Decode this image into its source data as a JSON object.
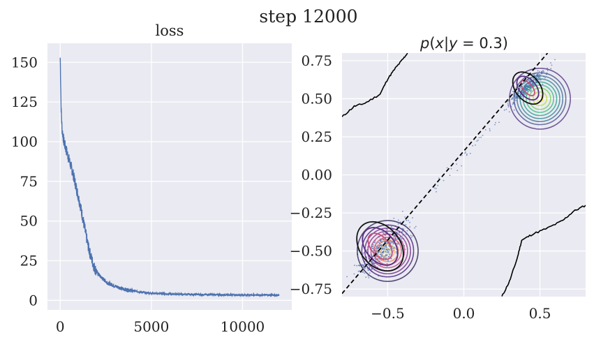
{
  "figure": {
    "suptitle": "step 12000"
  },
  "chart_data": [
    {
      "type": "line",
      "title": "loss",
      "xlabel": "",
      "ylabel": "",
      "xlim": [
        -700,
        12700
      ],
      "ylim": [
        -6,
        162
      ],
      "xticks": [
        0,
        5000,
        10000
      ],
      "xtick_labels": [
        "0",
        "5000",
        "10000"
      ],
      "yticks": [
        0,
        25,
        50,
        75,
        100,
        125,
        150
      ],
      "ytick_labels": [
        "0",
        "25",
        "50",
        "75",
        "100",
        "125",
        "150"
      ],
      "grid": true,
      "series": [
        {
          "color": "#4c72b0",
          "x": [
            0,
            50,
            100,
            200,
            300,
            400,
            500,
            600,
            700,
            800,
            900,
            1000,
            1100,
            1200,
            1300,
            1400,
            1500,
            1600,
            1700,
            1800,
            1900,
            2000,
            2200,
            2400,
            2600,
            2800,
            3000,
            3500,
            4000,
            4500,
            5000,
            6000,
            7000,
            8000,
            9000,
            10000,
            11000,
            12000
          ],
          "values": [
            153,
            120,
            108,
            100,
            96,
            92,
            88,
            84,
            80,
            75,
            70,
            65,
            60,
            54,
            48,
            42,
            36,
            31,
            27,
            23,
            20,
            18,
            15,
            13,
            11,
            10,
            9,
            7,
            6,
            5,
            4.5,
            4,
            3.8,
            3.6,
            3.5,
            3.4,
            3.4,
            3.3
          ]
        }
      ]
    },
    {
      "type": "scatter",
      "title": "p(x|y = 0.3)",
      "title_parts": {
        "p": "p",
        "open": "(",
        "x": "x",
        "bar": "|",
        "y": "y",
        "eq": " = 0.3)"
      },
      "xlabel": "",
      "ylabel": "",
      "xlim": [
        -0.8,
        0.8
      ],
      "ylim": [
        -0.8,
        0.8
      ],
      "xticks": [
        -0.5,
        0.0,
        0.5
      ],
      "xtick_labels": [
        "−0.5",
        "0.0",
        "0.5"
      ],
      "yticks": [
        -0.75,
        -0.5,
        -0.25,
        0.0,
        0.25,
        0.5,
        0.75
      ],
      "ytick_labels": [
        "−0.75",
        "−0.50",
        "−0.25",
        "0.00",
        "0.25",
        "0.50",
        "0.75"
      ],
      "grid": true,
      "colors": {
        "samples": "#4c72b0",
        "boundary": "#000000",
        "contour_inner": "#f7d26b",
        "contour_mid": "#d8576b",
        "contour_outer": "#5a2d82",
        "contour_cool": "#2a9d8f"
      },
      "clusters": [
        {
          "center": [
            -0.53,
            -0.49
          ],
          "spread": [
            0.07,
            0.07
          ],
          "count": 500
        },
        {
          "center": [
            0.42,
            0.58
          ],
          "spread": [
            0.05,
            0.045
          ],
          "count": 320
        }
      ],
      "true_contours": [
        {
          "center": [
            -0.5,
            -0.5
          ],
          "radii": [
            0.02,
            0.045,
            0.07,
            0.09,
            0.11,
            0.13,
            0.15,
            0.17,
            0.2
          ],
          "style": "magma"
        },
        {
          "center": [
            0.5,
            0.5
          ],
          "radii": [
            0.02,
            0.045,
            0.07,
            0.09,
            0.11,
            0.13,
            0.15,
            0.17,
            0.2
          ],
          "style": "viridis"
        }
      ],
      "model_contours": [
        {
          "center": [
            -0.55,
            -0.47
          ],
          "rx": [
            0.06,
            0.095,
            0.13
          ],
          "ry": [
            0.1,
            0.14,
            0.18
          ],
          "angle": -40
        },
        {
          "center": [
            0.42,
            0.57
          ],
          "rx": [
            0.03,
            0.055,
            0.08
          ],
          "ry": [
            0.06,
            0.09,
            0.12
          ],
          "angle": -40
        }
      ],
      "dashed_line": {
        "x": [
          -0.8,
          0.55
        ],
        "y": [
          -0.78,
          0.8
        ]
      },
      "boundary_upper": {
        "x": [
          -0.8,
          -0.72,
          -0.65,
          -0.55,
          -0.5,
          -0.45,
          -0.4,
          -0.37
        ],
        "y": [
          0.38,
          0.45,
          0.47,
          0.53,
          0.63,
          0.7,
          0.76,
          0.8
        ]
      },
      "boundary_lower": {
        "x": [
          0.25,
          0.3,
          0.35,
          0.38,
          0.45,
          0.55,
          0.65,
          0.72,
          0.8
        ],
        "y": [
          -0.8,
          -0.7,
          -0.55,
          -0.43,
          -0.39,
          -0.35,
          -0.3,
          -0.24,
          -0.2
        ]
      }
    }
  ]
}
